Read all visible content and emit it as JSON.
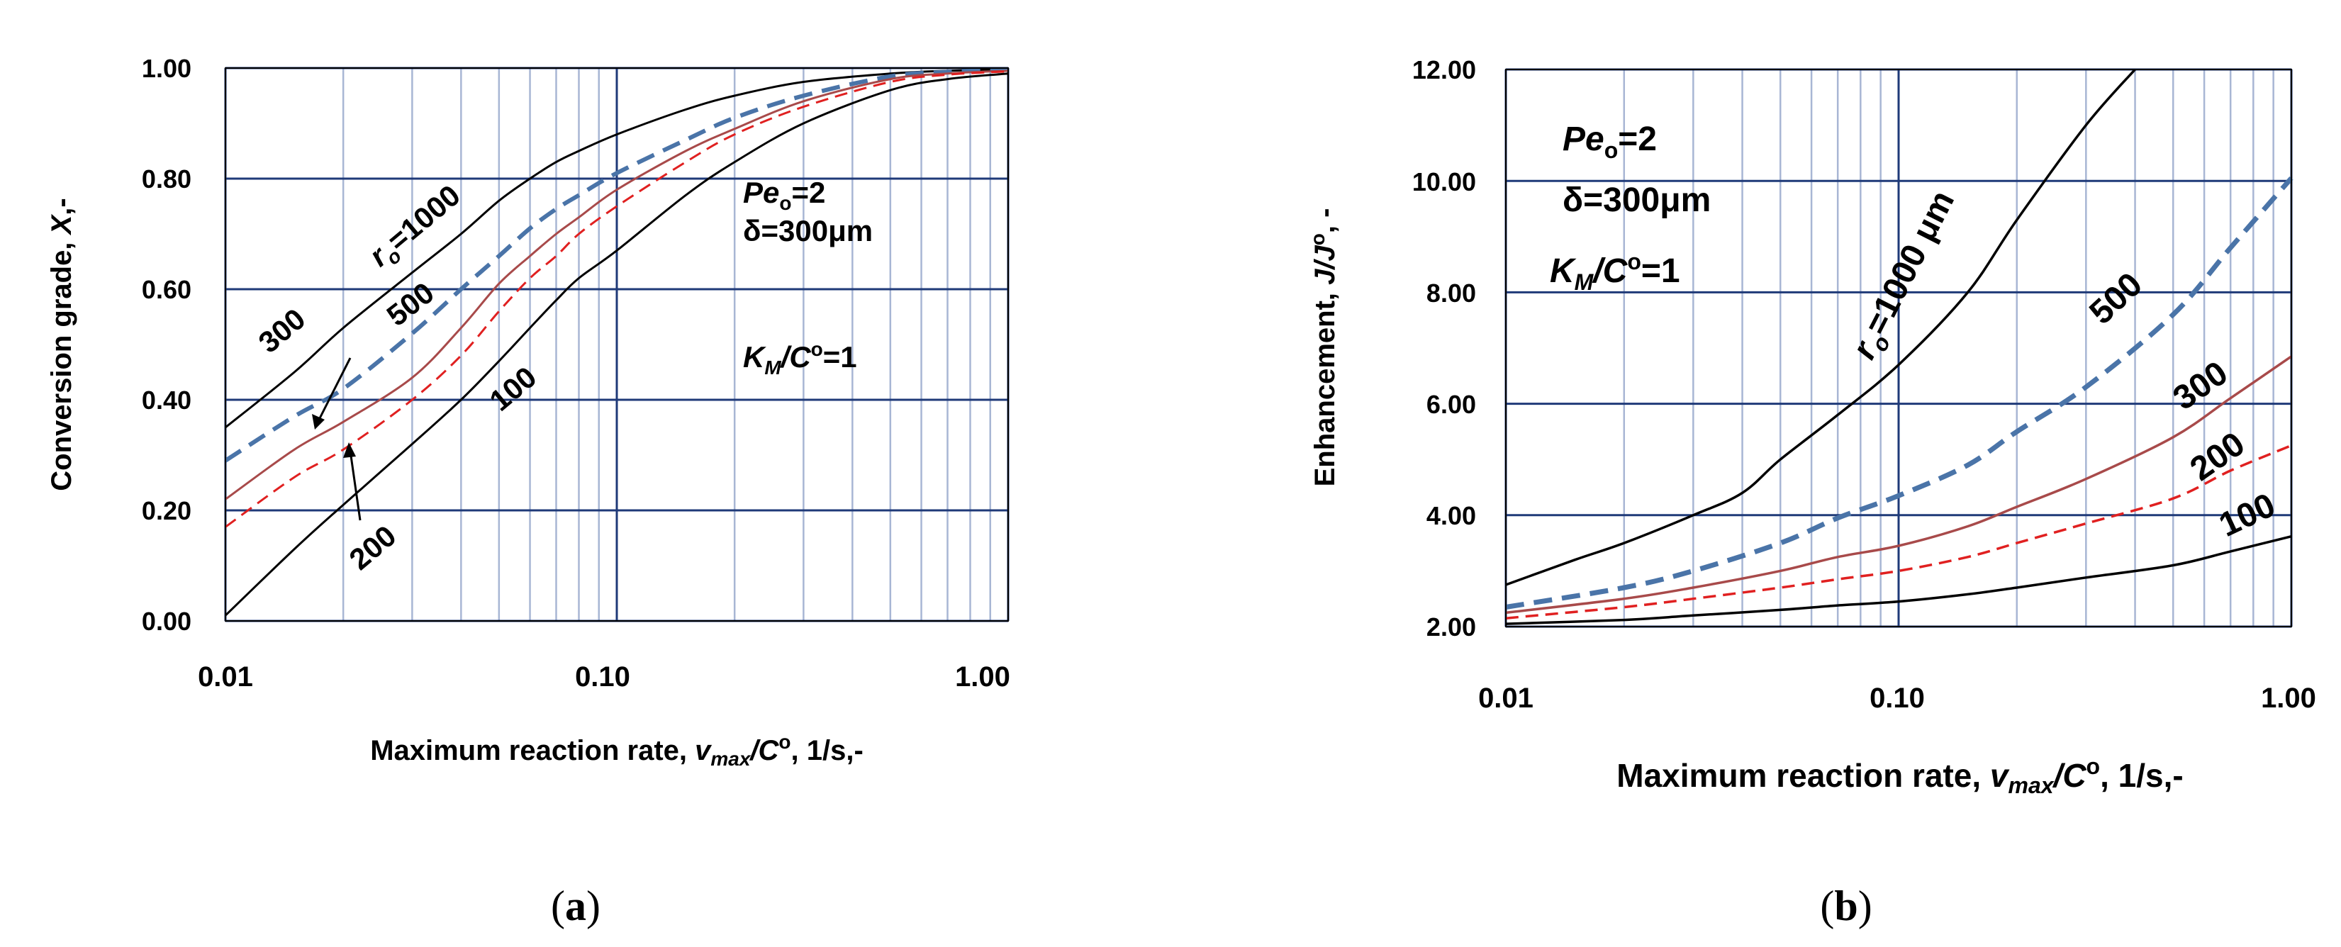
{
  "chart_data": [
    {
      "type": "line",
      "panel": {
        "open": "(",
        "letter": "a",
        "close": ")"
      },
      "x_scale": "log",
      "xlim": [
        0.01,
        1.0
      ],
      "ylim": [
        0.0,
        1.0
      ],
      "x_ticks": [
        "0.01",
        "0.10",
        "1.00"
      ],
      "y_ticks": [
        "0.00",
        "0.20",
        "0.40",
        "0.60",
        "0.80",
        "1.00"
      ],
      "xlabel": {
        "main": "Maximum reaction  rate, ",
        "v": "v",
        "v_sub": "max",
        "mid": "/C",
        "sup": "o",
        "end": ", 1/s,-"
      },
      "ylabel": {
        "main": "Conversion grade, ",
        "sym": "X",
        "end": ",-"
      },
      "grid": true,
      "annotations": {
        "pe": "Pe",
        "pe_sub": "o",
        "pe_val": "=2",
        "delta": "δ=300μm",
        "km": "K",
        "km_sub": "M",
        "km_mid": "/C",
        "km_sup": "o",
        "km_val": "=1"
      },
      "curve_labels": {
        "r1000_pre": "r",
        "r1000_sub": "o",
        "r1000_val": "=1000",
        "l500": "500",
        "l300": "300",
        "l200": "200",
        "l100": "100"
      },
      "series": [
        {
          "name": "1000",
          "style": "solid",
          "color": "#000000",
          "x": [
            0.01,
            0.015,
            0.02,
            0.03,
            0.04,
            0.05,
            0.06,
            0.07,
            0.08,
            0.1,
            0.15,
            0.2,
            0.3,
            0.5,
            0.7,
            1.0
          ],
          "y": [
            0.35,
            0.45,
            0.53,
            0.63,
            0.7,
            0.76,
            0.8,
            0.83,
            0.85,
            0.88,
            0.925,
            0.95,
            0.975,
            0.99,
            0.995,
            0.998
          ]
        },
        {
          "name": "500",
          "style": "dashed-thick",
          "color": "#4a74a8",
          "x": [
            0.01,
            0.015,
            0.02,
            0.03,
            0.04,
            0.05,
            0.06,
            0.07,
            0.08,
            0.1,
            0.15,
            0.2,
            0.3,
            0.5,
            0.7,
            1.0
          ],
          "y": [
            0.29,
            0.37,
            0.42,
            0.52,
            0.6,
            0.66,
            0.71,
            0.745,
            0.77,
            0.81,
            0.87,
            0.91,
            0.95,
            0.985,
            0.993,
            0.997
          ]
        },
        {
          "name": "300",
          "style": "solid",
          "color": "#a84a4a",
          "x": [
            0.01,
            0.015,
            0.02,
            0.03,
            0.04,
            0.05,
            0.06,
            0.07,
            0.08,
            0.1,
            0.15,
            0.2,
            0.3,
            0.5,
            0.7,
            1.0
          ],
          "y": [
            0.22,
            0.31,
            0.36,
            0.44,
            0.53,
            0.61,
            0.66,
            0.7,
            0.73,
            0.78,
            0.85,
            0.89,
            0.94,
            0.98,
            0.99,
            0.995
          ]
        },
        {
          "name": "200",
          "style": "dashed",
          "color": "#e02020",
          "x": [
            0.01,
            0.015,
            0.02,
            0.03,
            0.04,
            0.05,
            0.06,
            0.07,
            0.08,
            0.1,
            0.15,
            0.2,
            0.3,
            0.5,
            0.7,
            1.0
          ],
          "y": [
            0.17,
            0.26,
            0.31,
            0.4,
            0.48,
            0.56,
            0.62,
            0.66,
            0.7,
            0.75,
            0.83,
            0.88,
            0.93,
            0.975,
            0.988,
            0.994
          ]
        },
        {
          "name": "100",
          "style": "solid",
          "color": "#000000",
          "x": [
            0.01,
            0.015,
            0.02,
            0.03,
            0.04,
            0.05,
            0.06,
            0.07,
            0.08,
            0.1,
            0.15,
            0.2,
            0.3,
            0.5,
            0.7,
            1.0
          ],
          "y": [
            0.01,
            0.13,
            0.21,
            0.32,
            0.4,
            0.47,
            0.53,
            0.58,
            0.62,
            0.67,
            0.77,
            0.83,
            0.9,
            0.96,
            0.98,
            0.99
          ]
        }
      ]
    },
    {
      "type": "line",
      "panel": {
        "open": "(",
        "letter": "b",
        "close": ")"
      },
      "x_scale": "log",
      "xlim": [
        0.01,
        1.0
      ],
      "ylim": [
        2.0,
        12.0
      ],
      "x_ticks": [
        "0.01",
        "0.10",
        "1.00"
      ],
      "y_ticks": [
        "2.00",
        "4.00",
        "6.00",
        "8.00",
        "10.00",
        "12.00"
      ],
      "xlabel": {
        "main": "Maximum reaction  rate, ",
        "v": "v",
        "v_sub": "max",
        "mid": "/C",
        "sup": "o",
        "end": ", 1/s,-"
      },
      "ylabel": {
        "main": "Enhancement, ",
        "sym": "J/J",
        "sup": "o",
        "end": ", -"
      },
      "grid": true,
      "annotations": {
        "pe": "Pe",
        "pe_sub": "o",
        "pe_val": "=2",
        "delta": "δ=300μm",
        "km": "K",
        "km_sub": "M",
        "km_mid": "/C",
        "km_sup": "o",
        "km_val": "=1"
      },
      "curve_labels": {
        "r1000_pre": "r",
        "r1000_sub": "o",
        "r1000_val": "=1000 μm",
        "l500": "500",
        "l300": "300",
        "l200": "200",
        "l100": "100"
      },
      "series": [
        {
          "name": "1000",
          "style": "solid",
          "color": "#000000",
          "x": [
            0.01,
            0.015,
            0.02,
            0.03,
            0.04,
            0.05,
            0.07,
            0.1,
            0.15,
            0.2,
            0.3,
            0.4
          ],
          "y": [
            2.75,
            3.2,
            3.5,
            4.0,
            4.4,
            5.0,
            5.8,
            6.7,
            8.0,
            9.3,
            11.0,
            12.0
          ]
        },
        {
          "name": "500",
          "style": "dashed-thick",
          "color": "#4a74a8",
          "x": [
            0.01,
            0.02,
            0.03,
            0.05,
            0.07,
            0.1,
            0.15,
            0.2,
            0.3,
            0.5,
            0.7,
            1.0
          ],
          "y": [
            2.35,
            2.7,
            3.0,
            3.5,
            3.95,
            4.35,
            4.9,
            5.5,
            6.3,
            7.6,
            8.8,
            10.05
          ]
        },
        {
          "name": "300",
          "style": "solid",
          "color": "#a84a4a",
          "x": [
            0.01,
            0.02,
            0.03,
            0.05,
            0.07,
            0.1,
            0.15,
            0.2,
            0.3,
            0.5,
            0.7,
            1.0
          ],
          "y": [
            2.25,
            2.5,
            2.7,
            3.0,
            3.25,
            3.45,
            3.8,
            4.15,
            4.65,
            5.4,
            6.1,
            6.85
          ]
        },
        {
          "name": "200",
          "style": "dashed",
          "color": "#e02020",
          "x": [
            0.01,
            0.02,
            0.03,
            0.05,
            0.07,
            0.1,
            0.15,
            0.2,
            0.3,
            0.5,
            0.7,
            1.0
          ],
          "y": [
            2.15,
            2.35,
            2.5,
            2.7,
            2.85,
            3.0,
            3.25,
            3.5,
            3.85,
            4.3,
            4.8,
            5.25
          ]
        },
        {
          "name": "100",
          "style": "solid",
          "color": "#000000",
          "x": [
            0.01,
            0.02,
            0.03,
            0.05,
            0.07,
            0.1,
            0.15,
            0.2,
            0.3,
            0.5,
            0.7,
            1.0
          ],
          "y": [
            2.05,
            2.12,
            2.2,
            2.3,
            2.38,
            2.45,
            2.58,
            2.7,
            2.88,
            3.1,
            3.35,
            3.62
          ]
        }
      ]
    }
  ]
}
